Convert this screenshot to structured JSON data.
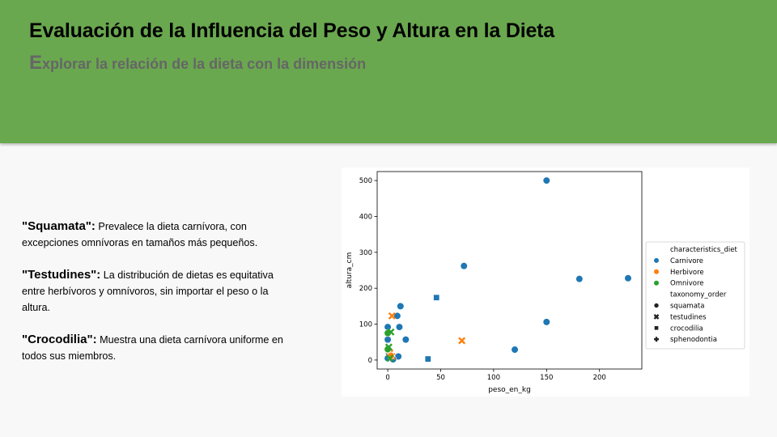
{
  "slide": {
    "title": "Evaluación de la Influencia del Peso y Altura en la Dieta",
    "subtitle_first_letter": "E",
    "subtitle_rest": "xplorar la relación de la dieta con la dimensión",
    "banner_color": "#6aa84f"
  },
  "notes": [
    {
      "term": "\"Squamata\":",
      "text": " Prevalece la dieta carnívora, con excepciones omnívoras en tamaños más pequeños."
    },
    {
      "term": "\"Testudines\":",
      "text": " La distribución de dietas es equitativa entre herbívoros y omnívoros, sin importar el peso o la altura."
    },
    {
      "term": "\"Crocodilia\":",
      "text": " Muestra una dieta carnívora uniforme en todos sus miembros."
    }
  ],
  "chart_data": {
    "type": "scatter",
    "title": "",
    "xlabel": "peso_en_kg",
    "ylabel": "altura_cm",
    "xlim": [
      -10,
      240
    ],
    "ylim": [
      -25,
      525
    ],
    "xticks": [
      0,
      50,
      100,
      150,
      200
    ],
    "yticks": [
      0,
      100,
      200,
      300,
      400,
      500
    ],
    "grid": false,
    "legend_position": "right",
    "legend": {
      "hue_title": "characteristics_diet",
      "hue": [
        {
          "name": "Carnivore",
          "color": "#1f77b4"
        },
        {
          "name": "Herbivore",
          "color": "#ff7f0e"
        },
        {
          "name": "Omnivore",
          "color": "#2ca02c"
        }
      ],
      "style_title": "taxonomy_order",
      "style": [
        {
          "name": "squamata",
          "marker": "circle"
        },
        {
          "name": "testudines",
          "marker": "x"
        },
        {
          "name": "crocodilia",
          "marker": "square"
        },
        {
          "name": "sphenodontia",
          "marker": "plus"
        }
      ]
    },
    "points": [
      {
        "x": 150,
        "y": 500,
        "diet": "Carnivore",
        "order": "squamata"
      },
      {
        "x": 72,
        "y": 262,
        "diet": "Carnivore",
        "order": "squamata"
      },
      {
        "x": 181,
        "y": 226,
        "diet": "Carnivore",
        "order": "squamata"
      },
      {
        "x": 227,
        "y": 228,
        "diet": "Carnivore",
        "order": "squamata"
      },
      {
        "x": 150,
        "y": 106,
        "diet": "Carnivore",
        "order": "squamata"
      },
      {
        "x": 120,
        "y": 29,
        "diet": "Carnivore",
        "order": "squamata"
      },
      {
        "x": 12,
        "y": 150,
        "diet": "Carnivore",
        "order": "squamata"
      },
      {
        "x": 9,
        "y": 123,
        "diet": "Carnivore",
        "order": "squamata"
      },
      {
        "x": 11,
        "y": 92,
        "diet": "Carnivore",
        "order": "squamata"
      },
      {
        "x": 17,
        "y": 57,
        "diet": "Carnivore",
        "order": "squamata"
      },
      {
        "x": 10,
        "y": 10,
        "diet": "Carnivore",
        "order": "squamata"
      },
      {
        "x": 0,
        "y": 92,
        "diet": "Carnivore",
        "order": "squamata"
      },
      {
        "x": 0,
        "y": 57,
        "diet": "Carnivore",
        "order": "squamata"
      },
      {
        "x": 1,
        "y": 20,
        "diet": "Carnivore",
        "order": "squamata"
      },
      {
        "x": 0,
        "y": 5,
        "diet": "Carnivore",
        "order": "squamata"
      },
      {
        "x": 5,
        "y": 2,
        "diet": "Carnivore",
        "order": "squamata"
      },
      {
        "x": 46,
        "y": 174,
        "diet": "Carnivore",
        "order": "crocodilia"
      },
      {
        "x": 38,
        "y": 3,
        "diet": "Carnivore",
        "order": "crocodilia"
      },
      {
        "x": 70,
        "y": 54,
        "diet": "Herbivore",
        "order": "testudines"
      },
      {
        "x": 4,
        "y": 123,
        "diet": "Herbivore",
        "order": "testudines"
      },
      {
        "x": 2,
        "y": 20,
        "diet": "Herbivore",
        "order": "testudines"
      },
      {
        "x": 4,
        "y": 10,
        "diet": "Herbivore",
        "order": "testudines"
      },
      {
        "x": 0,
        "y": 28,
        "diet": "Herbivore",
        "order": "squamata"
      },
      {
        "x": 3,
        "y": 12,
        "diet": "Herbivore",
        "order": "squamata"
      },
      {
        "x": 0,
        "y": 75,
        "diet": "Omnivore",
        "order": "squamata"
      },
      {
        "x": 0,
        "y": 30,
        "diet": "Omnivore",
        "order": "squamata"
      },
      {
        "x": 3,
        "y": 78,
        "diet": "Omnivore",
        "order": "testudines"
      },
      {
        "x": 1,
        "y": 36,
        "diet": "Omnivore",
        "order": "testudines"
      },
      {
        "x": 2,
        "y": 5,
        "diet": "Omnivore",
        "order": "testudines"
      }
    ]
  }
}
